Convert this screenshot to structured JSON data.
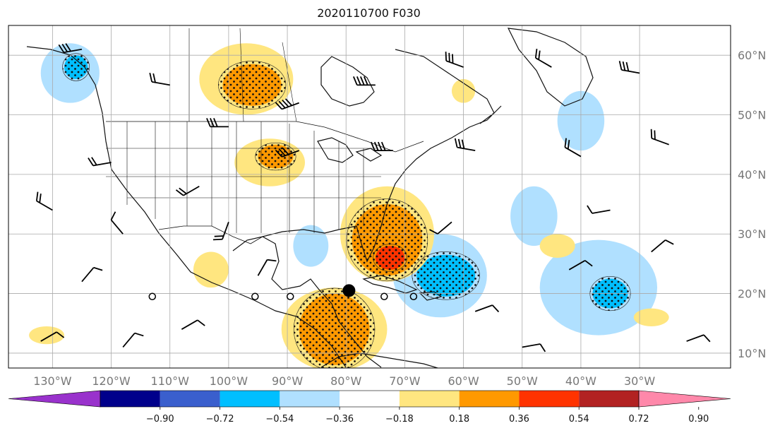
{
  "title": "2020110700 F030",
  "map": {
    "lon_range": [
      -137.5,
      -14.5
    ],
    "lat_range": [
      7.5,
      65.0
    ],
    "grid": true,
    "projection": "cylindrical",
    "lat_ticks": [
      {
        "value": 60,
        "label": "60°N"
      },
      {
        "value": 50,
        "label": "50°N"
      },
      {
        "value": 40,
        "label": "40°N"
      },
      {
        "value": 30,
        "label": "30°N"
      },
      {
        "value": 20,
        "label": "20°N"
      },
      {
        "value": 10,
        "label": "10°N"
      }
    ],
    "lon_ticks": [
      {
        "value": -130,
        "label": "130°W"
      },
      {
        "value": -120,
        "label": "120°W"
      },
      {
        "value": -110,
        "label": "110°W"
      },
      {
        "value": -100,
        "label": "100°W"
      },
      {
        "value": -90,
        "label": "90°W"
      },
      {
        "value": -80,
        "label": "80°W"
      },
      {
        "value": -70,
        "label": "70°W"
      },
      {
        "value": -60,
        "label": "60°W"
      },
      {
        "value": -50,
        "label": "50°W"
      },
      {
        "value": -40,
        "label": "40°W"
      },
      {
        "value": -30,
        "label": "30°W"
      }
    ],
    "marker": {
      "lon": -79.5,
      "lat": 20.5
    },
    "open_circles": [
      {
        "lon": -113,
        "lat": 19.5
      },
      {
        "lon": -95.5,
        "lat": 19.5
      },
      {
        "lon": -89.5,
        "lat": 19.5
      },
      {
        "lon": -73.5,
        "lat": 19.5
      },
      {
        "lon": -68.5,
        "lat": 19.5
      }
    ]
  },
  "colorbar": {
    "colors": [
      "#9932cc",
      "#00008b",
      "#3a5fcd",
      "#00bfff",
      "#b0e0ff",
      "#ffffff",
      "#ffe680",
      "#ff9900",
      "#ff3300",
      "#b22222",
      "#ff88aa"
    ],
    "extend": "both",
    "ticks": [
      "−0.90",
      "−0.72",
      "−0.54",
      "−0.36",
      "−0.18",
      "0.18",
      "0.36",
      "0.54",
      "0.72",
      "0.90"
    ]
  },
  "field_regions": [
    {
      "level": "neg1",
      "color": "#b0e0ff",
      "lon": -127,
      "lat": 57,
      "rx": 5,
      "ry": 5
    },
    {
      "level": "neg2",
      "color": "#00bfff",
      "lon": -126,
      "lat": 58,
      "rx": 2,
      "ry": 2
    },
    {
      "level": "neg1",
      "color": "#b0e0ff",
      "lon": -64,
      "lat": 23,
      "rx": 8,
      "ry": 7
    },
    {
      "level": "neg2",
      "color": "#00bfff",
      "lon": -63,
      "lat": 23,
      "rx": 5,
      "ry": 3.5
    },
    {
      "level": "neg1",
      "color": "#b0e0ff",
      "lon": -37,
      "lat": 21,
      "rx": 10,
      "ry": 8
    },
    {
      "level": "neg2",
      "color": "#00bfff",
      "lon": -35,
      "lat": 20,
      "rx": 3,
      "ry": 2.5
    },
    {
      "level": "neg1",
      "color": "#b0e0ff",
      "lon": -48,
      "lat": 33,
      "rx": 4,
      "ry": 5
    },
    {
      "level": "neg1",
      "color": "#b0e0ff",
      "lon": -40,
      "lat": 49,
      "rx": 4,
      "ry": 5
    },
    {
      "level": "neg1",
      "color": "#b0e0ff",
      "lon": -86,
      "lat": 28,
      "rx": 3,
      "ry": 3.5
    },
    {
      "level": "pos1",
      "color": "#ffe680",
      "lon": -97,
      "lat": 56,
      "rx": 8,
      "ry": 6
    },
    {
      "level": "pos2",
      "color": "#ff9900",
      "lon": -96,
      "lat": 55,
      "rx": 5,
      "ry": 3.5
    },
    {
      "level": "pos1",
      "color": "#ffe680",
      "lon": -93,
      "lat": 42,
      "rx": 6,
      "ry": 4
    },
    {
      "level": "pos2",
      "color": "#ff9900",
      "lon": -92,
      "lat": 43,
      "rx": 3,
      "ry": 2
    },
    {
      "level": "pos1",
      "color": "#ffe680",
      "lon": -73,
      "lat": 30,
      "rx": 8,
      "ry": 8
    },
    {
      "level": "pos2",
      "color": "#ff9900",
      "lon": -73,
      "lat": 29,
      "rx": 6,
      "ry": 6
    },
    {
      "level": "pos3",
      "color": "#ff3300",
      "lon": -72.5,
      "lat": 26,
      "rx": 2.5,
      "ry": 2
    },
    {
      "level": "pos1",
      "color": "#ffe680",
      "lon": -82,
      "lat": 14,
      "rx": 9,
      "ry": 7
    },
    {
      "level": "pos2",
      "color": "#ff9900",
      "lon": -82,
      "lat": 14,
      "rx": 6,
      "ry": 6
    },
    {
      "level": "pos1",
      "color": "#ffe680",
      "lon": -103,
      "lat": 24,
      "rx": 3,
      "ry": 3
    },
    {
      "level": "pos1",
      "color": "#ffe680",
      "lon": -131,
      "lat": 13,
      "rx": 3,
      "ry": 1.5
    },
    {
      "level": "pos1",
      "color": "#ffe680",
      "lon": -44,
      "lat": 28,
      "rx": 3,
      "ry": 2
    },
    {
      "level": "pos1",
      "color": "#ffe680",
      "lon": -28,
      "lat": 16,
      "rx": 3,
      "ry": 1.5
    },
    {
      "level": "pos1",
      "color": "#ffe680",
      "lon": -60,
      "lat": 54,
      "rx": 2,
      "ry": 2
    }
  ],
  "wind_barbs": [
    {
      "lon": -125,
      "lat": 61,
      "dir": 260,
      "barbs": 3
    },
    {
      "lon": -110,
      "lat": 55,
      "dir": 280,
      "barbs": 2
    },
    {
      "lon": -100,
      "lat": 48,
      "dir": 270,
      "barbs": 3
    },
    {
      "lon": -88,
      "lat": 52,
      "dir": 250,
      "barbs": 4
    },
    {
      "lon": -75,
      "lat": 55,
      "dir": 270,
      "barbs": 4
    },
    {
      "lon": -60,
      "lat": 58,
      "dir": 290,
      "barbs": 3
    },
    {
      "lon": -45,
      "lat": 58,
      "dir": 300,
      "barbs": 2
    },
    {
      "lon": -30,
      "lat": 57,
      "dir": 280,
      "barbs": 3
    },
    {
      "lon": -120,
      "lat": 42,
      "dir": 260,
      "barbs": 2
    },
    {
      "lon": -105,
      "lat": 38,
      "dir": 240,
      "barbs": 2
    },
    {
      "lon": -88,
      "lat": 44,
      "dir": 250,
      "barbs": 3
    },
    {
      "lon": -72,
      "lat": 44,
      "dir": 270,
      "barbs": 4
    },
    {
      "lon": -58,
      "lat": 44,
      "dir": 280,
      "barbs": 3
    },
    {
      "lon": -40,
      "lat": 43,
      "dir": 300,
      "barbs": 2
    },
    {
      "lon": -25,
      "lat": 45,
      "dir": 290,
      "barbs": 2
    },
    {
      "lon": -130,
      "lat": 34,
      "dir": 300,
      "barbs": 2
    },
    {
      "lon": -118,
      "lat": 30,
      "dir": 320,
      "barbs": 1
    },
    {
      "lon": -100,
      "lat": 32,
      "dir": 200,
      "barbs": 2
    },
    {
      "lon": -62,
      "lat": 32,
      "dir": 230,
      "barbs": 1
    },
    {
      "lon": -35,
      "lat": 34,
      "dir": 260,
      "barbs": 1
    },
    {
      "lon": -125,
      "lat": 22,
      "dir": 40,
      "barbs": 1
    },
    {
      "lon": -108,
      "lat": 14,
      "dir": 60,
      "barbs": 1
    },
    {
      "lon": -95,
      "lat": 23,
      "dir": 30,
      "barbs": 1
    },
    {
      "lon": -58,
      "lat": 17,
      "dir": 70,
      "barbs": 1
    },
    {
      "lon": -42,
      "lat": 24,
      "dir": 60,
      "barbs": 1
    },
    {
      "lon": -28,
      "lat": 27,
      "dir": 50,
      "barbs": 1
    },
    {
      "lon": -132,
      "lat": 12,
      "dir": 60,
      "barbs": 1
    },
    {
      "lon": -118,
      "lat": 11,
      "dir": 40,
      "barbs": 1
    },
    {
      "lon": -50,
      "lat": 11,
      "dir": 80,
      "barbs": 1
    },
    {
      "lon": -22,
      "lat": 12,
      "dir": 70,
      "barbs": 1
    }
  ]
}
